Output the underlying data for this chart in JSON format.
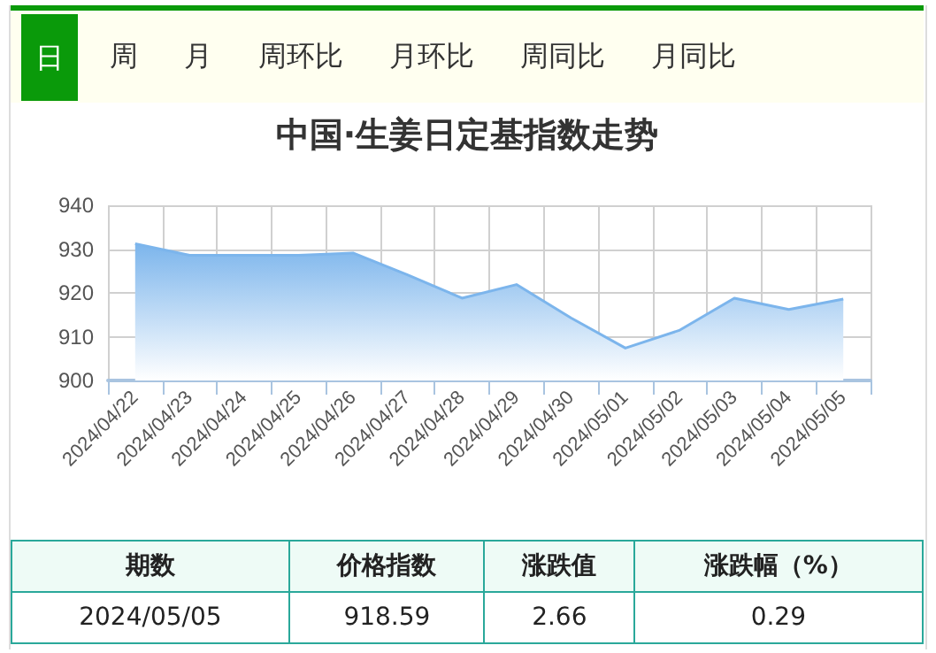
{
  "chart_data": {
    "type": "area",
    "title": "中国·生姜日定基指数走势",
    "categories": [
      "2024/04/22",
      "2024/04/23",
      "2024/04/24",
      "2024/04/25",
      "2024/04/26",
      "2024/04/27",
      "2024/04/28",
      "2024/04/29",
      "2024/04/30",
      "2024/05/01",
      "2024/05/02",
      "2024/05/03",
      "2024/05/04",
      "2024/05/05"
    ],
    "series": [
      {
        "color": "#7cb5ec",
        "values": [
          931.2,
          928.6,
          928.6,
          928.6,
          929.1,
          924.1,
          918.8,
          921.9,
          914.3,
          907.4,
          911.5,
          918.8,
          916.2,
          918.59
        ]
      }
    ],
    "ylim": [
      900,
      940
    ],
    "yticks": [
      900,
      910,
      920,
      930,
      940
    ],
    "grid": true,
    "marker": "none",
    "line_style": "solid",
    "annotations": [
      "日",
      "周",
      "月",
      "周环比",
      "月环比",
      "周同比",
      "月同比",
      "期数",
      "价格指数",
      "涨跌值",
      "涨跌幅（%）",
      "2024/05/05",
      "918.59",
      "2.66",
      "0.29"
    ]
  }
}
